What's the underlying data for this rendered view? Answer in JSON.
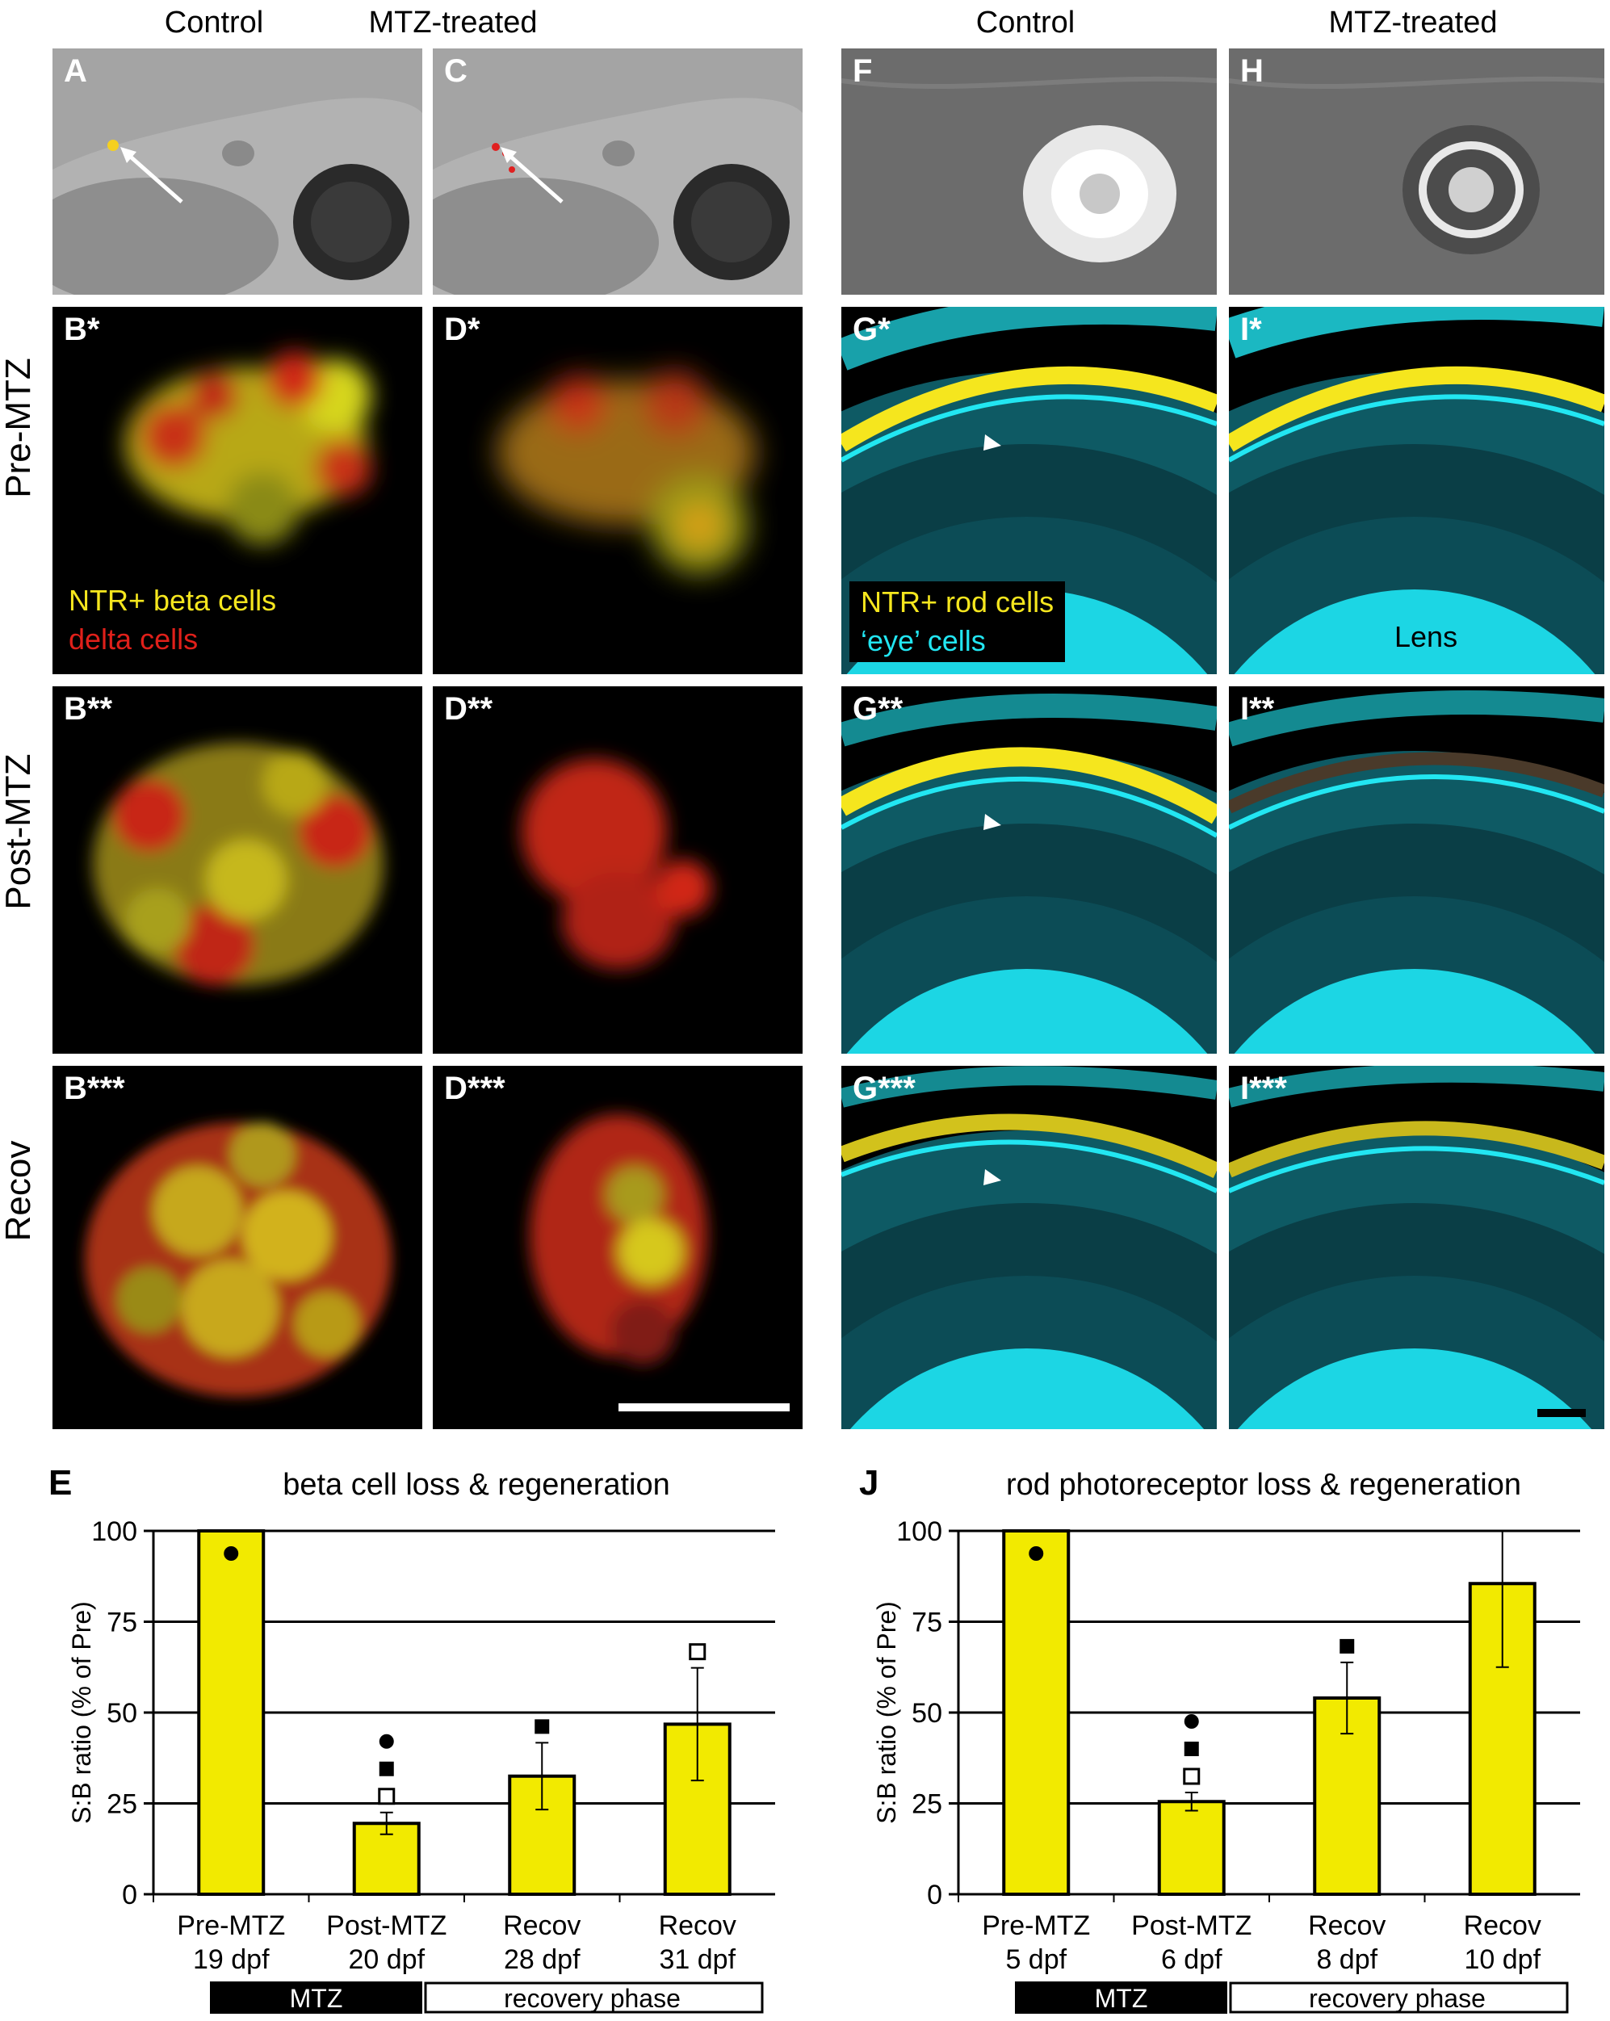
{
  "headers": {
    "control_left": "Control",
    "mtz_left": "MTZ-treated",
    "control_right": "Control",
    "mtz_right": "MTZ-treated"
  },
  "row_labels": {
    "pre": "Pre-MTZ",
    "post": "Post-MTZ",
    "recov": "Recov"
  },
  "panels": {
    "A": "A",
    "C": "C",
    "F": "F",
    "H": "H",
    "B1": "B*",
    "D1": "D*",
    "G1": "G*",
    "I1": "I*",
    "B2": "B**",
    "D2": "D**",
    "G2": "G**",
    "I2": "I**",
    "B3": "B***",
    "D3": "D***",
    "G3": "G***",
    "I3": "I***"
  },
  "legends": {
    "beta": "NTR+ beta cells",
    "delta": "delta cells",
    "rod": "NTR+ rod cells",
    "eye": "‘eye’ cells",
    "lens": "Lens"
  },
  "colors": {
    "bar": "#f2ea00",
    "cyan": "#22e6f2",
    "yellow": "#f5e61e",
    "red": "#e0201a"
  },
  "chart_data": [
    {
      "panel": "E",
      "type": "bar",
      "title": "beta cell loss & regeneration",
      "ylabel": "S:B ratio (% of Pre)",
      "ylim": [
        0,
        100
      ],
      "yticks": [
        "0",
        "25",
        "50",
        "75",
        "100"
      ],
      "grid": true,
      "categories": [
        [
          "Pre-MTZ",
          "19 dpf"
        ],
        [
          "Post-MTZ",
          "20 dpf"
        ],
        [
          "Recov",
          "28 dpf"
        ],
        [
          "Recov",
          "31 dpf"
        ]
      ],
      "values": [
        100,
        19.5,
        32.5,
        46.8
      ],
      "errors": [
        0,
        3,
        9.2,
        15.5
      ],
      "markers": [
        [
          "filled-circle"
        ],
        [
          "filled-circle",
          "filled-square",
          "open-square"
        ],
        [
          "filled-square"
        ],
        [
          "open-square"
        ]
      ],
      "phase_labels": {
        "mtz": "MTZ",
        "recovery": "recovery phase"
      }
    },
    {
      "panel": "J",
      "type": "bar",
      "title": "rod photoreceptor loss & regeneration",
      "ylabel": "S:B ratio (% of Pre)",
      "ylim": [
        0,
        100
      ],
      "yticks": [
        "0",
        "25",
        "50",
        "75",
        "100"
      ],
      "grid": true,
      "categories": [
        [
          "Pre-MTZ",
          "5 dpf"
        ],
        [
          "Post-MTZ",
          "6 dpf"
        ],
        [
          "Recov",
          "8 dpf"
        ],
        [
          "Recov",
          "10 dpf"
        ]
      ],
      "values": [
        100,
        25.5,
        54,
        85.5
      ],
      "errors": [
        0,
        2.5,
        9.8,
        23
      ],
      "markers": [
        [
          "filled-circle"
        ],
        [
          "filled-circle",
          "filled-square",
          "open-square"
        ],
        [
          "filled-square"
        ],
        [
          "open-square"
        ]
      ],
      "phase_labels": {
        "mtz": "MTZ",
        "recovery": "recovery phase"
      }
    }
  ]
}
